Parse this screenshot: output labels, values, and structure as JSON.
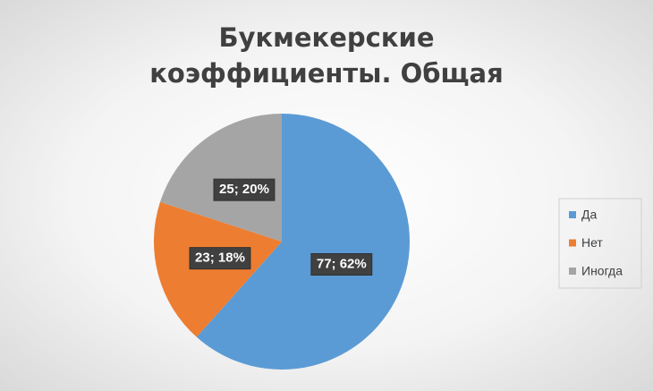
{
  "chart_data": {
    "type": "pie",
    "title": "Букмекерские коэффициенты. Общая",
    "categories": [
      "Да",
      "Нет",
      "Иногда"
    ],
    "values": [
      77,
      23,
      25
    ],
    "value_labels": [
      "77; 62%",
      "23; 18%",
      "25; 20%"
    ],
    "colors": [
      "#5b9bd5",
      "#ed7d31",
      "#a5a5a5"
    ],
    "legend": "right"
  }
}
